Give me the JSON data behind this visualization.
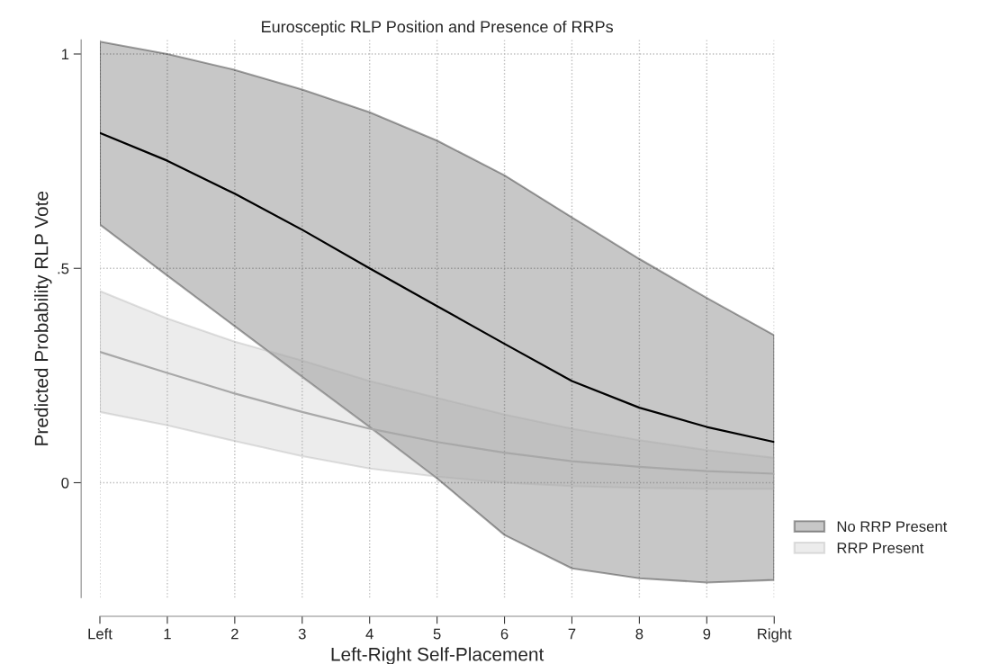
{
  "chart_data": {
    "type": "line",
    "title": "Eurosceptic RLP Position and Presence of RRPs",
    "xlabel": "Left-Right Self-Placement",
    "ylabel": "Predicted Probability RLP Vote",
    "x": [
      0,
      1,
      2,
      3,
      4,
      5,
      6,
      7,
      8,
      9,
      10
    ],
    "series": [
      {
        "name": "No RRP Present",
        "color": "#000000",
        "values": [
          0.816,
          0.751,
          0.674,
          0.59,
          0.5,
          0.412,
          0.324,
          0.237,
          0.175,
          0.13,
          0.095
        ],
        "lower": [
          0.602,
          0.483,
          0.365,
          0.247,
          0.13,
          0.01,
          -0.122,
          -0.2,
          -0.223,
          -0.233,
          -0.227
        ],
        "upper": [
          1.029,
          1.0,
          0.963,
          0.917,
          0.864,
          0.798,
          0.717,
          0.619,
          0.522,
          0.431,
          0.344
        ]
      },
      {
        "name": "RRP Present",
        "color": "#a8a8a8",
        "values": [
          0.305,
          0.256,
          0.208,
          0.165,
          0.126,
          0.095,
          0.07,
          0.05,
          0.037,
          0.027,
          0.021
        ],
        "lower": [
          0.165,
          0.134,
          0.097,
          0.062,
          0.033,
          0.014,
          0.0,
          -0.008,
          -0.012,
          -0.014,
          -0.014
        ],
        "upper": [
          0.447,
          0.383,
          0.329,
          0.285,
          0.237,
          0.198,
          0.159,
          0.126,
          0.099,
          0.076,
          0.058
        ]
      }
    ],
    "xlim": [
      0,
      10
    ],
    "ylim": [
      -0.268,
      1.033
    ],
    "xticks": [
      {
        "value": 0,
        "label": "Left"
      },
      1,
      2,
      3,
      4,
      5,
      6,
      7,
      8,
      9,
      {
        "value": 10,
        "label": "Right"
      }
    ],
    "yticks": [
      0,
      {
        "value": 0.5,
        "label": ".5"
      },
      1
    ],
    "grid": true,
    "legend": "bottom right",
    "line_style": "solid",
    "marker": "none"
  }
}
